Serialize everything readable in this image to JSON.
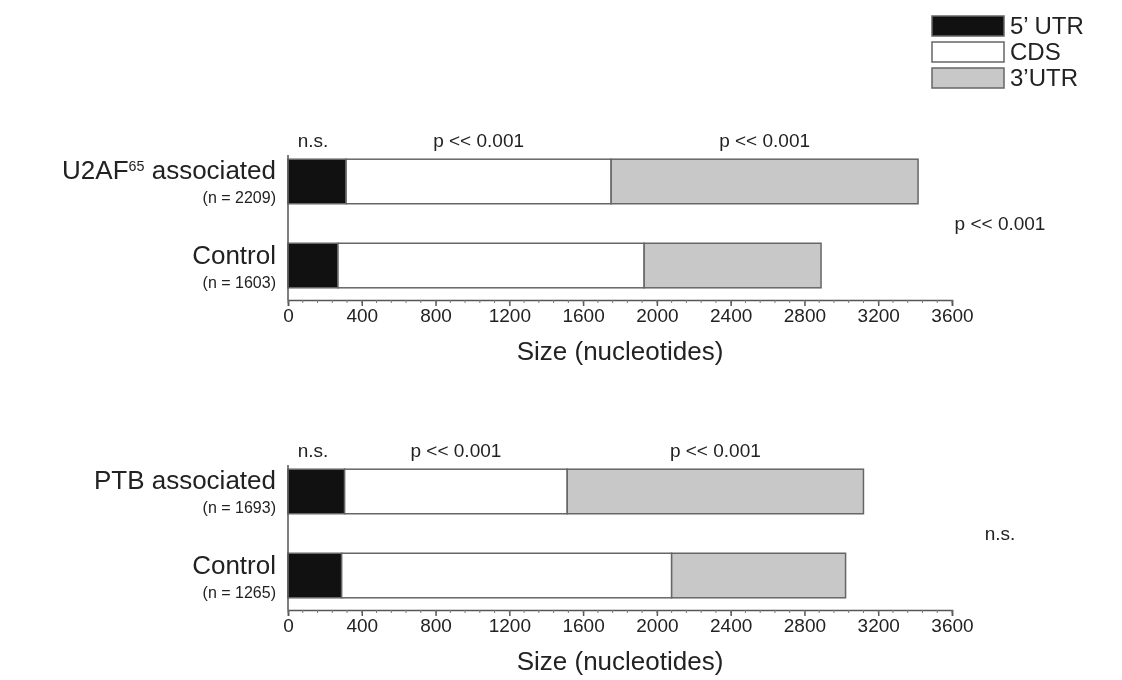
{
  "chart_data": [
    {
      "type": "bar",
      "orientation": "horizontal",
      "stacked": true,
      "legend": "top right",
      "categories": [
        "U2AF$^{65}$ associated\n(n = 2209)",
        "Control\n(n = 1603)"
      ],
      "series": [
        {
          "name": "5’ UTR",
          "color": "#111111",
          "values": [
            315,
            271
          ]
        },
        {
          "name": "CDS",
          "color": "#ffffff",
          "values": [
            1437,
            1660
          ]
        },
        {
          "name": "3’UTR",
          "color": "#c8c8c8",
          "values": [
            1664,
            959
          ]
        }
      ],
      "xlim": [
        0,
        3600
      ],
      "xticks": [
        0,
        400,
        800,
        1200,
        1600,
        2000,
        2400,
        2800,
        3200,
        3600
      ],
      "xlabel": "Size (nucleotides)",
      "annotations": [
        "n.s.",
        "p << 0.001",
        "p << 0.001",
        "p << 0.001"
      ]
    },
    {
      "type": "bar",
      "orientation": "horizontal",
      "stacked": true,
      "categories": [
        "PTB associated\n(n = 1693)",
        "Control\n(n = 1265)"
      ],
      "series": [
        {
          "color": "#111111",
          "values": [
            307,
            291
          ]
        },
        {
          "color": "#ffffff",
          "values": [
            1207,
            1789
          ]
        },
        {
          "color": "#c8c8c8",
          "values": [
            1606,
            943
          ]
        }
      ],
      "xlim": [
        0,
        3600
      ],
      "xticks": [
        0,
        400,
        800,
        1200,
        1600,
        2000,
        2400,
        2800,
        3200,
        3600
      ],
      "xlabel": "Size (nucleotides)",
      "annotations": [
        "n.s.",
        "p << 0.001",
        "p << 0.001",
        "n.s."
      ]
    }
  ]
}
